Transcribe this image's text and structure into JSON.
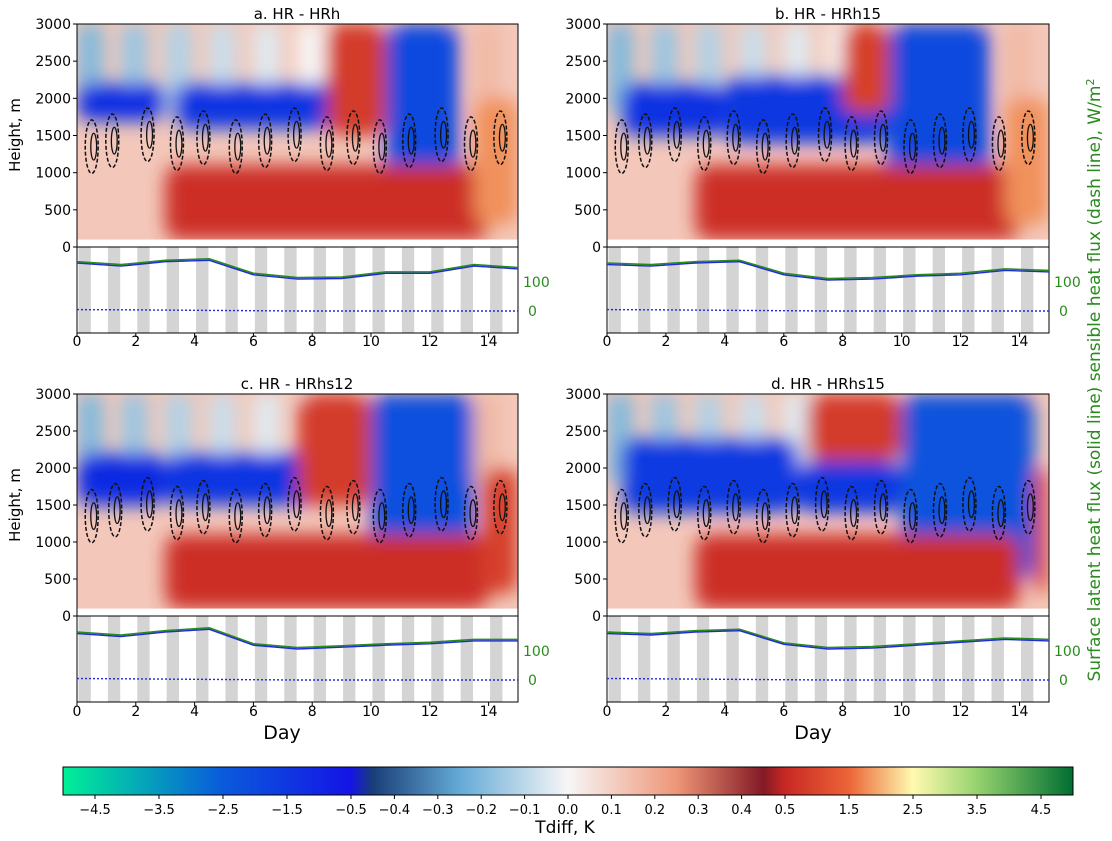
{
  "figure": {
    "shared_xlabel": "Day",
    "left_ylabel": "Height, m",
    "right_ylabel": "Surface latent heat flux (solid line) sensible heat flux (dash line), W/m",
    "right_ylabel_sup": "2",
    "colorbar_label": "Tdiff, K",
    "colors": {
      "flux_latent": "#2a8a1e",
      "flux_sensible": "#1f2bd8",
      "shade": "#d4d4d4",
      "contour": "#111111"
    }
  },
  "colorbar": {
    "ticks": [
      "−4.5",
      "−3.5",
      "−2.5",
      "−1.5",
      "−0.5",
      "−0.4",
      "−0.3",
      "−0.2",
      "−0.1",
      "0.0",
      "0.1",
      "0.2",
      "0.3",
      "0.4",
      "0.5",
      "1.5",
      "2.5",
      "3.5",
      "4.5"
    ]
  },
  "chart_data": [
    {
      "type": "heatmap",
      "title": "a. HR - HRh",
      "ylabel": "Height, m",
      "xlim": [
        0,
        15
      ],
      "ylim": [
        0,
        3000
      ],
      "x_ticks": [
        "0",
        "2",
        "4",
        "6",
        "8",
        "10",
        "12",
        "14"
      ],
      "y_ticks": [
        "3000",
        "2500",
        "2000",
        "1500",
        "1000",
        "500"
      ],
      "flux_y_ticks": [
        "0"
      ],
      "flux_right_ticks": [
        "100",
        "0"
      ],
      "regions": [
        {
          "t0": 0,
          "t1": 3.0,
          "z0": 1700,
          "z1": 2200,
          "value": -1.2
        },
        {
          "t0": 3.3,
          "t1": 9.0,
          "z0": 1600,
          "z1": 2200,
          "value": -1.4
        },
        {
          "t0": 10.5,
          "t1": 13.0,
          "z0": 700,
          "z1": 3000,
          "value": -2.0
        },
        {
          "t0": 3.0,
          "t1": 14.0,
          "z0": 100,
          "z1": 1100,
          "value": 0.6
        },
        {
          "t0": 8.5,
          "t1": 10.5,
          "z0": 1500,
          "z1": 3000,
          "value": 0.8
        },
        {
          "t0": 13.5,
          "t1": 15.0,
          "z0": 300,
          "z1": 2000,
          "value": 1.8
        }
      ],
      "cloud_days": [
        0.5,
        1.2,
        2.4,
        3.4,
        4.3,
        5.4,
        6.4,
        7.4,
        8.5,
        9.4,
        10.3,
        11.3,
        12.4,
        13.4,
        14.4
      ],
      "latent_flux": [
        170,
        160,
        175,
        180,
        130,
        115,
        117,
        135,
        135,
        160,
        150
      ],
      "sensible_flux": [
        5,
        4,
        3,
        2,
        1,
        0,
        0,
        0,
        0,
        0,
        0
      ]
    },
    {
      "type": "heatmap",
      "title": "b. HR - HRh15",
      "ylabel": "",
      "xlim": [
        0,
        15
      ],
      "ylim": [
        0,
        3000
      ],
      "x_ticks": [
        "0",
        "2",
        "4",
        "6",
        "8",
        "10",
        "12",
        "14"
      ],
      "y_ticks": [
        "3000",
        "2500",
        "2000",
        "1500",
        "1000",
        "500"
      ],
      "flux_y_ticks": [
        "0"
      ],
      "flux_right_ticks": [
        "100",
        "0"
      ],
      "regions": [
        {
          "t0": 0.5,
          "t1": 4.0,
          "z0": 1500,
          "z1": 2200,
          "value": -1.3
        },
        {
          "t0": 4.0,
          "t1": 9.5,
          "z0": 1400,
          "z1": 2300,
          "value": -1.5
        },
        {
          "t0": 9.5,
          "t1": 13.0,
          "z0": 700,
          "z1": 3000,
          "value": -2.0
        },
        {
          "t0": 3.0,
          "t1": 14.0,
          "z0": 100,
          "z1": 1100,
          "value": 0.6
        },
        {
          "t0": 8.0,
          "t1": 9.6,
          "z0": 1800,
          "z1": 3000,
          "value": 0.9
        },
        {
          "t0": 13.5,
          "t1": 15.0,
          "z0": 300,
          "z1": 2000,
          "value": 1.8
        }
      ],
      "cloud_days": [
        0.5,
        1.3,
        2.3,
        3.3,
        4.3,
        5.3,
        6.3,
        7.4,
        8.3,
        9.3,
        10.3,
        11.3,
        12.3,
        13.3,
        14.3
      ],
      "latent_flux": [
        165,
        160,
        170,
        175,
        130,
        112,
        115,
        125,
        130,
        145,
        140
      ],
      "sensible_flux": [
        5,
        4,
        3,
        2,
        1,
        0,
        0,
        0,
        0,
        0,
        0
      ]
    },
    {
      "type": "heatmap",
      "title": "c. HR - HRhs12",
      "ylabel": "Height, m",
      "xlim": [
        0,
        15
      ],
      "ylim": [
        0,
        3000
      ],
      "x_ticks": [
        "0",
        "2",
        "4",
        "6",
        "8",
        "10",
        "12",
        "14"
      ],
      "y_ticks": [
        "3000",
        "2500",
        "2000",
        "1500",
        "1000",
        "500"
      ],
      "flux_y_ticks": [
        "0"
      ],
      "flux_right_ticks": [
        "100",
        "0"
      ],
      "regions": [
        {
          "t0": 0,
          "t1": 3.0,
          "z0": 1500,
          "z1": 2200,
          "value": -1.1
        },
        {
          "t0": 3.0,
          "t1": 8.5,
          "z0": 1500,
          "z1": 2200,
          "value": -1.4
        },
        {
          "t0": 10.0,
          "t1": 13.5,
          "z0": 500,
          "z1": 3000,
          "value": -2.2
        },
        {
          "t0": 3.0,
          "t1": 14.0,
          "z0": 100,
          "z1": 1100,
          "value": 0.6
        },
        {
          "t0": 7.5,
          "t1": 10.0,
          "z0": 1500,
          "z1": 3000,
          "value": 0.8
        },
        {
          "t0": 13.8,
          "t1": 15.0,
          "z0": 300,
          "z1": 2000,
          "value": 0.9
        }
      ],
      "cloud_days": [
        0.5,
        1.3,
        2.4,
        3.4,
        4.3,
        5.4,
        6.4,
        7.4,
        8.5,
        9.4,
        10.3,
        11.3,
        12.4,
        13.4,
        14.4
      ],
      "latent_flux": [
        165,
        155,
        170,
        180,
        125,
        112,
        118,
        125,
        130,
        140,
        140
      ],
      "sensible_flux": [
        5,
        4,
        3,
        2,
        1,
        0,
        0,
        0,
        0,
        0,
        0
      ]
    },
    {
      "type": "heatmap",
      "title": "d. HR - HRhs15",
      "ylabel": "",
      "xlim": [
        0,
        15
      ],
      "ylim": [
        0,
        3000
      ],
      "x_ticks": [
        "0",
        "2",
        "4",
        "6",
        "8",
        "10",
        "12",
        "14"
      ],
      "y_ticks": [
        "3000",
        "2500",
        "2000",
        "1500",
        "1000",
        "500"
      ],
      "flux_y_ticks": [
        "0"
      ],
      "flux_right_ticks": [
        "100",
        "0"
      ],
      "regions": [
        {
          "t0": 0.5,
          "t1": 6.5,
          "z0": 1400,
          "z1": 2400,
          "value": -1.6
        },
        {
          "t0": 6.5,
          "t1": 10.0,
          "z0": 1400,
          "z1": 2100,
          "value": -1.5
        },
        {
          "t0": 10.0,
          "t1": 14.5,
          "z0": 500,
          "z1": 3000,
          "value": -2.3
        },
        {
          "t0": 3.0,
          "t1": 14.0,
          "z0": 100,
          "z1": 1100,
          "value": 0.6
        },
        {
          "t0": 6.8,
          "t1": 10.0,
          "z0": 2100,
          "z1": 3000,
          "value": 0.8
        },
        {
          "t0": 14.5,
          "t1": 15.0,
          "z0": 300,
          "z1": 2000,
          "value": 1.0
        }
      ],
      "cloud_days": [
        0.5,
        1.3,
        2.3,
        3.3,
        4.3,
        5.3,
        6.3,
        7.3,
        8.3,
        9.3,
        10.3,
        11.3,
        12.3,
        13.3,
        14.3
      ],
      "latent_flux": [
        165,
        160,
        170,
        175,
        128,
        112,
        115,
        125,
        135,
        145,
        140
      ],
      "sensible_flux": [
        5,
        4,
        3,
        2,
        1,
        0,
        0,
        0,
        0,
        0,
        0
      ]
    }
  ]
}
